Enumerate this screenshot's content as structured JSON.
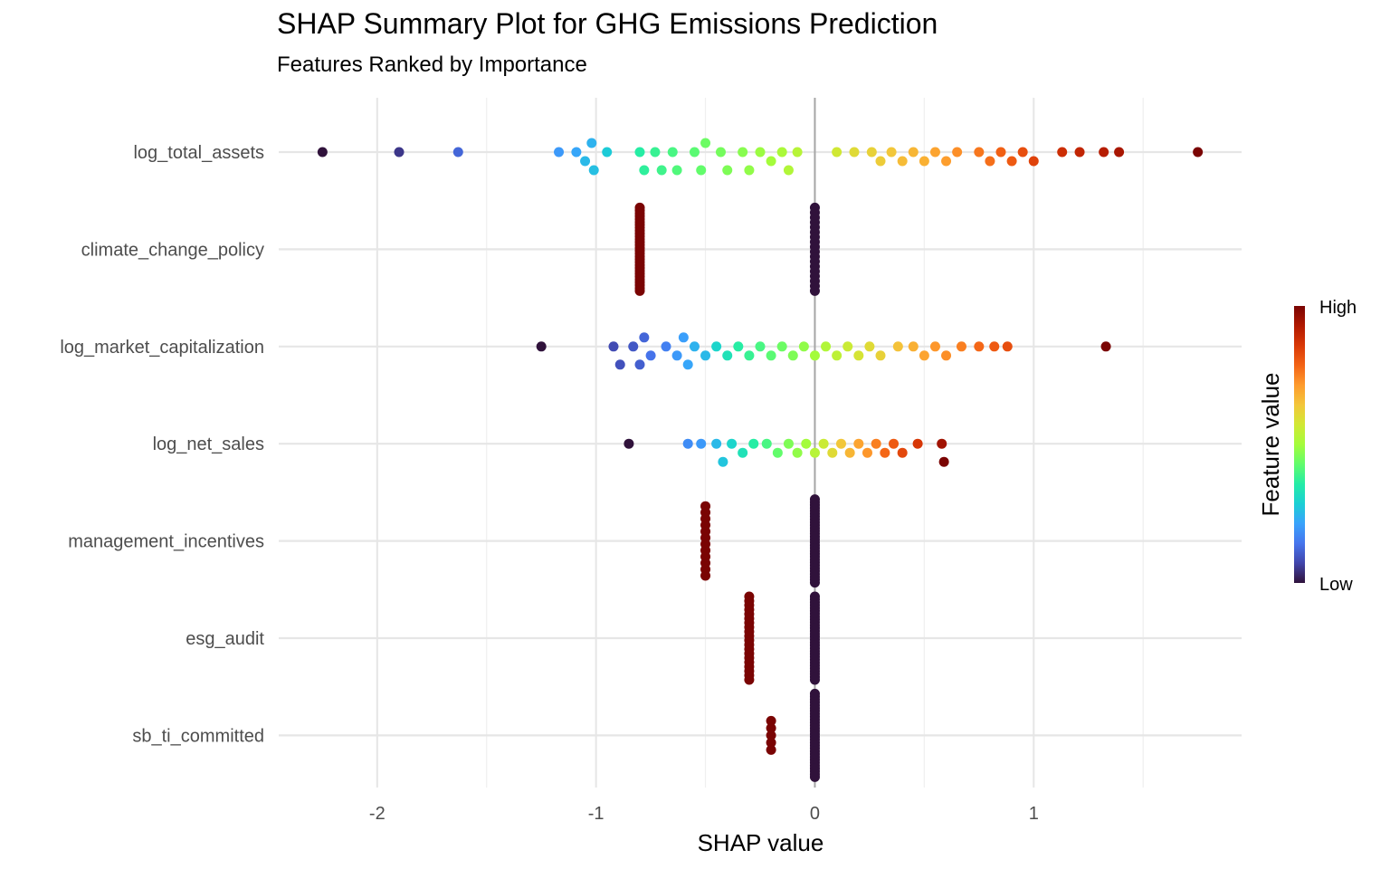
{
  "chart_data": {
    "type": "scatter",
    "title": "SHAP Summary Plot for GHG Emissions Prediction",
    "subtitle": "Features Ranked by Importance",
    "xlabel": "SHAP value",
    "ylabel": "",
    "xlim": [
      -2.45,
      1.95
    ],
    "x_ticks": [
      -2,
      -1,
      0,
      1
    ],
    "x_tick_labels": [
      "-2",
      "-1",
      "0",
      "1"
    ],
    "grid": true,
    "features": [
      "log_total_assets",
      "climate_change_policy",
      "log_market_capitalization",
      "log_net_sales",
      "management_incentives",
      "esg_audit",
      "sb_ti_committed"
    ],
    "legend": {
      "title": "Feature value",
      "high_label": "High",
      "low_label": "Low",
      "position": "right",
      "palette": [
        "#30123b",
        "#4145ab",
        "#4675ed",
        "#39a2fc",
        "#1bcfd4",
        "#24eca6",
        "#61fc6c",
        "#a4fc3b",
        "#d1e834",
        "#f3c63a",
        "#fe9b2d",
        "#f36315",
        "#d93806",
        "#b11901",
        "#7a0403"
      ]
    },
    "series": [
      {
        "feature": "log_total_assets",
        "points": [
          {
            "shap": -2.25,
            "value": 0.0
          },
          {
            "shap": -1.9,
            "value": 0.05
          },
          {
            "shap": -1.63,
            "value": 0.12
          },
          {
            "shap": -1.17,
            "value": 0.2
          },
          {
            "shap": -1.09,
            "value": 0.22
          },
          {
            "shap": -1.05,
            "value": 0.25
          },
          {
            "shap": -1.02,
            "value": 0.24
          },
          {
            "shap": -1.01,
            "value": 0.26
          },
          {
            "shap": -0.95,
            "value": 0.28
          },
          {
            "shap": -0.8,
            "value": 0.36
          },
          {
            "shap": -0.78,
            "value": 0.37
          },
          {
            "shap": -0.73,
            "value": 0.38
          },
          {
            "shap": -0.7,
            "value": 0.39
          },
          {
            "shap": -0.65,
            "value": 0.4
          },
          {
            "shap": -0.63,
            "value": 0.41
          },
          {
            "shap": -0.55,
            "value": 0.42
          },
          {
            "shap": -0.52,
            "value": 0.43
          },
          {
            "shap": -0.5,
            "value": 0.44
          },
          {
            "shap": -0.43,
            "value": 0.45
          },
          {
            "shap": -0.4,
            "value": 0.46
          },
          {
            "shap": -0.33,
            "value": 0.47
          },
          {
            "shap": -0.3,
            "value": 0.48
          },
          {
            "shap": -0.25,
            "value": 0.49
          },
          {
            "shap": -0.2,
            "value": 0.5
          },
          {
            "shap": -0.15,
            "value": 0.51
          },
          {
            "shap": -0.12,
            "value": 0.52
          },
          {
            "shap": -0.08,
            "value": 0.53
          },
          {
            "shap": 0.1,
            "value": 0.57
          },
          {
            "shap": 0.18,
            "value": 0.6
          },
          {
            "shap": 0.26,
            "value": 0.62
          },
          {
            "shap": 0.3,
            "value": 0.63
          },
          {
            "shap": 0.35,
            "value": 0.64
          },
          {
            "shap": 0.4,
            "value": 0.66
          },
          {
            "shap": 0.45,
            "value": 0.67
          },
          {
            "shap": 0.5,
            "value": 0.68
          },
          {
            "shap": 0.55,
            "value": 0.7
          },
          {
            "shap": 0.6,
            "value": 0.71
          },
          {
            "shap": 0.65,
            "value": 0.73
          },
          {
            "shap": 0.75,
            "value": 0.76
          },
          {
            "shap": 0.8,
            "value": 0.77
          },
          {
            "shap": 0.85,
            "value": 0.79
          },
          {
            "shap": 0.9,
            "value": 0.8
          },
          {
            "shap": 0.95,
            "value": 0.82
          },
          {
            "shap": 1.0,
            "value": 0.84
          },
          {
            "shap": 1.13,
            "value": 0.88
          },
          {
            "shap": 1.21,
            "value": 0.9
          },
          {
            "shap": 1.32,
            "value": 0.92
          },
          {
            "shap": 1.39,
            "value": 0.94
          },
          {
            "shap": 1.75,
            "value": 1.0
          }
        ]
      },
      {
        "feature": "climate_change_policy",
        "points": [
          {
            "shap": -0.8,
            "value": 1.0,
            "count": 30
          },
          {
            "shap": 0.0,
            "value": 0.0,
            "count": 18
          }
        ]
      },
      {
        "feature": "log_market_capitalization",
        "points": [
          {
            "shap": -1.25,
            "value": 0.0
          },
          {
            "shap": -0.92,
            "value": 0.08
          },
          {
            "shap": -0.89,
            "value": 0.09
          },
          {
            "shap": -0.83,
            "value": 0.1
          },
          {
            "shap": -0.8,
            "value": 0.11
          },
          {
            "shap": -0.78,
            "value": 0.12
          },
          {
            "shap": -0.75,
            "value": 0.14
          },
          {
            "shap": -0.68,
            "value": 0.16
          },
          {
            "shap": -0.63,
            "value": 0.2
          },
          {
            "shap": -0.6,
            "value": 0.21
          },
          {
            "shap": -0.58,
            "value": 0.22
          },
          {
            "shap": -0.55,
            "value": 0.24
          },
          {
            "shap": -0.5,
            "value": 0.25
          },
          {
            "shap": -0.45,
            "value": 0.3
          },
          {
            "shap": -0.4,
            "value": 0.33
          },
          {
            "shap": -0.35,
            "value": 0.36
          },
          {
            "shap": -0.3,
            "value": 0.38
          },
          {
            "shap": -0.25,
            "value": 0.4
          },
          {
            "shap": -0.2,
            "value": 0.42
          },
          {
            "shap": -0.15,
            "value": 0.44
          },
          {
            "shap": -0.1,
            "value": 0.46
          },
          {
            "shap": -0.05,
            "value": 0.48
          },
          {
            "shap": 0.0,
            "value": 0.5
          },
          {
            "shap": 0.05,
            "value": 0.52
          },
          {
            "shap": 0.1,
            "value": 0.54
          },
          {
            "shap": 0.15,
            "value": 0.56
          },
          {
            "shap": 0.2,
            "value": 0.58
          },
          {
            "shap": 0.25,
            "value": 0.6
          },
          {
            "shap": 0.3,
            "value": 0.62
          },
          {
            "shap": 0.38,
            "value": 0.65
          },
          {
            "shap": 0.45,
            "value": 0.68
          },
          {
            "shap": 0.5,
            "value": 0.7
          },
          {
            "shap": 0.55,
            "value": 0.72
          },
          {
            "shap": 0.6,
            "value": 0.73
          },
          {
            "shap": 0.67,
            "value": 0.75
          },
          {
            "shap": 0.75,
            "value": 0.78
          },
          {
            "shap": 0.82,
            "value": 0.8
          },
          {
            "shap": 0.88,
            "value": 0.82
          },
          {
            "shap": 1.33,
            "value": 1.0
          }
        ]
      },
      {
        "feature": "log_net_sales",
        "points": [
          {
            "shap": -0.85,
            "value": 0.0
          },
          {
            "shap": -0.58,
            "value": 0.18
          },
          {
            "shap": -0.52,
            "value": 0.2
          },
          {
            "shap": -0.45,
            "value": 0.25
          },
          {
            "shap": -0.42,
            "value": 0.27
          },
          {
            "shap": -0.38,
            "value": 0.3
          },
          {
            "shap": -0.33,
            "value": 0.33
          },
          {
            "shap": -0.28,
            "value": 0.36
          },
          {
            "shap": -0.22,
            "value": 0.4
          },
          {
            "shap": -0.17,
            "value": 0.43
          },
          {
            "shap": -0.12,
            "value": 0.46
          },
          {
            "shap": -0.08,
            "value": 0.48
          },
          {
            "shap": -0.04,
            "value": 0.5
          },
          {
            "shap": 0.0,
            "value": 0.53
          },
          {
            "shap": 0.04,
            "value": 0.56
          },
          {
            "shap": 0.08,
            "value": 0.6
          },
          {
            "shap": 0.12,
            "value": 0.64
          },
          {
            "shap": 0.16,
            "value": 0.67
          },
          {
            "shap": 0.2,
            "value": 0.7
          },
          {
            "shap": 0.24,
            "value": 0.72
          },
          {
            "shap": 0.28,
            "value": 0.75
          },
          {
            "shap": 0.32,
            "value": 0.78
          },
          {
            "shap": 0.36,
            "value": 0.8
          },
          {
            "shap": 0.4,
            "value": 0.83
          },
          {
            "shap": 0.47,
            "value": 0.86
          },
          {
            "shap": 0.58,
            "value": 0.95
          },
          {
            "shap": 0.59,
            "value": 1.0
          }
        ]
      },
      {
        "feature": "management_incentives",
        "points": [
          {
            "shap": -0.5,
            "value": 1.0,
            "count": 12
          },
          {
            "shap": 0.0,
            "value": 0.0,
            "count": 30
          }
        ]
      },
      {
        "feature": "esg_audit",
        "points": [
          {
            "shap": -0.3,
            "value": 1.0,
            "count": 20
          },
          {
            "shap": 0.0,
            "value": 0.0,
            "count": 30
          }
        ]
      },
      {
        "feature": "sb_ti_committed",
        "points": [
          {
            "shap": -0.2,
            "value": 1.0,
            "count": 5
          },
          {
            "shap": 0.0,
            "value": 0.0,
            "count": 30
          }
        ]
      }
    ]
  }
}
